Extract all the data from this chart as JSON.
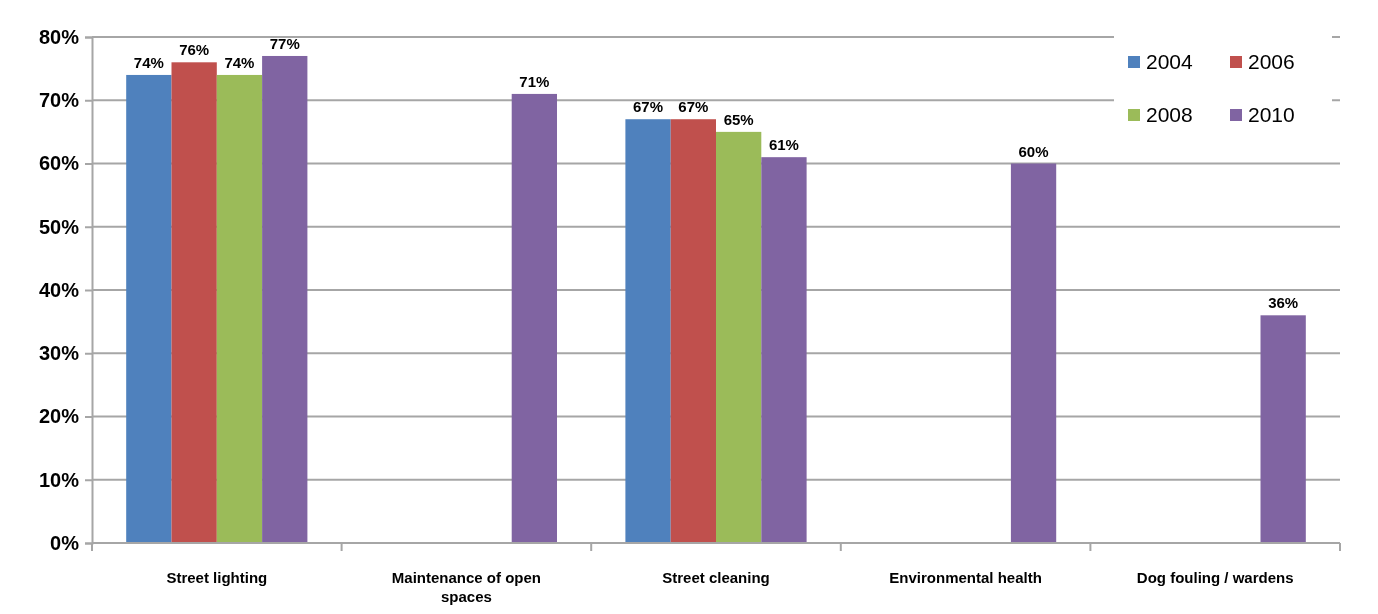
{
  "chart_data": {
    "type": "bar",
    "categories": [
      "Street lighting",
      "Maintenance of open spaces",
      "Street cleaning",
      "Environmental health",
      "Dog fouling / wardens"
    ],
    "series": [
      {
        "name": "2004",
        "color": "#4f81bd",
        "values": [
          74,
          null,
          67,
          null,
          null
        ],
        "value_labels": [
          "74%",
          null,
          "67%",
          null,
          null
        ]
      },
      {
        "name": "2006",
        "color": "#c0504d",
        "values": [
          76,
          null,
          67,
          null,
          null
        ],
        "value_labels": [
          "76%",
          null,
          "67%",
          null,
          null
        ]
      },
      {
        "name": "2008",
        "color": "#9bbb59",
        "values": [
          74,
          null,
          65,
          null,
          null
        ],
        "value_labels": [
          "74%",
          null,
          "65%",
          null,
          null
        ]
      },
      {
        "name": "2010",
        "color": "#8064a2",
        "values": [
          77,
          71,
          61,
          60,
          36
        ],
        "value_labels": [
          "77%",
          "71%",
          "61%",
          "60%",
          "36%"
        ]
      }
    ],
    "ylim": [
      0,
      80
    ],
    "yticks": [
      {
        "value": 0,
        "label": "0%"
      },
      {
        "value": 10,
        "label": "10%"
      },
      {
        "value": 20,
        "label": "20%"
      },
      {
        "value": 30,
        "label": "30%"
      },
      {
        "value": 40,
        "label": "40%"
      },
      {
        "value": 50,
        "label": "50%"
      },
      {
        "value": 60,
        "label": "60%"
      },
      {
        "value": 70,
        "label": "70%"
      },
      {
        "value": 80,
        "label": "80%"
      }
    ],
    "grid": "y",
    "legend": "top right"
  }
}
